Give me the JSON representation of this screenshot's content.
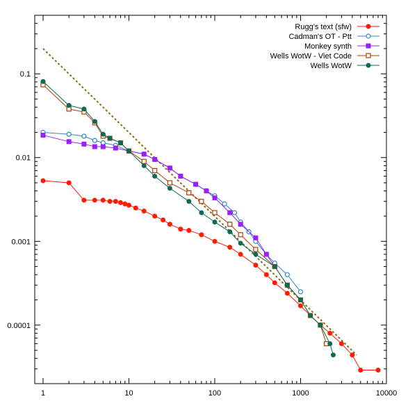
{
  "chart_data": {
    "type": "scatter",
    "title": "",
    "xlabel": "",
    "ylabel": "",
    "xscale": "log",
    "yscale": "log",
    "xlim": [
      0.8,
      10000
    ],
    "ylim": [
      2e-05,
      0.5
    ],
    "grid": false,
    "legend_position": "top-right",
    "x_ticks": [
      {
        "value": 1,
        "label": "1"
      },
      {
        "value": 10,
        "label": "10"
      },
      {
        "value": 100,
        "label": "100"
      },
      {
        "value": 1000,
        "label": "1000"
      },
      {
        "value": 10000,
        "label": "10000"
      }
    ],
    "y_ticks": [
      {
        "value": 0.1,
        "label": "0.1"
      },
      {
        "value": 0.01,
        "label": "0.01"
      },
      {
        "value": 0.001,
        "label": "0.001"
      },
      {
        "value": 0.0001,
        "label": "0.0001"
      }
    ],
    "reference_line": {
      "style": "dashed",
      "color": "#8b6a10",
      "points": [
        [
          1,
          0.2
        ],
        [
          4500,
          4.4e-05
        ]
      ]
    },
    "series": [
      {
        "name": "Rugg's text (sfw)",
        "color": "#ff1a00",
        "marker": "circle-filled",
        "points": [
          [
            1,
            0.0053
          ],
          [
            2,
            0.005
          ],
          [
            3,
            0.0031
          ],
          [
            4,
            0.0031
          ],
          [
            5,
            0.0031
          ],
          [
            6,
            0.003
          ],
          [
            7,
            0.003
          ],
          [
            8,
            0.0029
          ],
          [
            9,
            0.0028
          ],
          [
            10,
            0.0027
          ],
          [
            12,
            0.0025
          ],
          [
            15,
            0.0023
          ],
          [
            20,
            0.002
          ],
          [
            25,
            0.0018
          ],
          [
            30,
            0.0016
          ],
          [
            40,
            0.0014
          ],
          [
            50,
            0.00135
          ],
          [
            70,
            0.0012
          ],
          [
            100,
            0.001
          ],
          [
            150,
            0.00085
          ],
          [
            200,
            0.0007
          ],
          [
            300,
            0.00052
          ],
          [
            400,
            0.0004
          ],
          [
            500,
            0.00032
          ],
          [
            700,
            0.00024
          ],
          [
            1000,
            0.00017
          ],
          [
            1300,
            0.00013
          ],
          [
            1700,
            0.0001
          ],
          [
            2200,
            8e-05
          ],
          [
            3000,
            6e-05
          ],
          [
            4000,
            4.4e-05
          ],
          [
            5000,
            2.9e-05
          ],
          [
            8000,
            2.9e-05
          ]
        ]
      },
      {
        "name": "Cadman's OT - Ptt",
        "color": "#2a8ac6",
        "marker": "circle-open",
        "points": [
          [
            1,
            0.02
          ],
          [
            2,
            0.019
          ],
          [
            3,
            0.018
          ],
          [
            4,
            0.016
          ],
          [
            5,
            0.015
          ],
          [
            7,
            0.014
          ],
          [
            10,
            0.012
          ],
          [
            15,
            0.011
          ],
          [
            20,
            0.0095
          ],
          [
            30,
            0.0075
          ],
          [
            40,
            0.006
          ],
          [
            60,
            0.0048
          ],
          [
            80,
            0.004
          ],
          [
            100,
            0.0035
          ],
          [
            130,
            0.0028
          ],
          [
            170,
            0.0022
          ],
          [
            200,
            0.0017
          ],
          [
            250,
            0.0013
          ],
          [
            300,
            0.001
          ],
          [
            400,
            0.0007
          ],
          [
            500,
            0.00055
          ],
          [
            700,
            0.0004
          ],
          [
            1000,
            0.00025
          ]
        ]
      },
      {
        "name": "Monkey synth",
        "color": "#9a1fff",
        "marker": "square-filled",
        "points": [
          [
            1,
            0.0185
          ],
          [
            2,
            0.0155
          ],
          [
            3,
            0.0145
          ],
          [
            4,
            0.0135
          ],
          [
            5,
            0.0135
          ],
          [
            7,
            0.013
          ],
          [
            10,
            0.012
          ],
          [
            15,
            0.011
          ],
          [
            20,
            0.0095
          ],
          [
            30,
            0.0075
          ],
          [
            40,
            0.006
          ],
          [
            60,
            0.0048
          ],
          [
            80,
            0.004
          ],
          [
            100,
            0.0033
          ],
          [
            150,
            0.0022
          ],
          [
            200,
            0.0016
          ],
          [
            300,
            0.0011
          ],
          [
            400,
            0.0007
          ],
          [
            500,
            0.0005
          ]
        ]
      },
      {
        "name": "Wells WotW - Viet Code",
        "color": "#b33c00",
        "marker": "square-open",
        "points": [
          [
            1,
            0.074
          ],
          [
            2,
            0.038
          ],
          [
            3,
            0.035
          ],
          [
            4,
            0.026
          ],
          [
            5,
            0.018
          ],
          [
            6,
            0.017
          ],
          [
            8,
            0.015
          ],
          [
            10,
            0.012
          ],
          [
            15,
            0.009
          ],
          [
            20,
            0.007
          ],
          [
            30,
            0.005
          ],
          [
            50,
            0.0038
          ],
          [
            70,
            0.003
          ],
          [
            100,
            0.0022
          ],
          [
            150,
            0.0016
          ],
          [
            200,
            0.0012
          ],
          [
            300,
            0.0008
          ],
          [
            500,
            0.0005
          ],
          [
            700,
            0.0003
          ],
          [
            1000,
            0.0002
          ],
          [
            1300,
            0.00013
          ],
          [
            1700,
            0.0001
          ],
          [
            2000,
            6e-05
          ]
        ]
      },
      {
        "name": "Wells WotW",
        "color": "#0d6a55",
        "marker": "circle-filled",
        "points": [
          [
            1,
            0.081
          ],
          [
            2,
            0.042
          ],
          [
            3,
            0.038
          ],
          [
            4,
            0.027
          ],
          [
            5,
            0.019
          ],
          [
            6,
            0.017
          ],
          [
            8,
            0.015
          ],
          [
            10,
            0.012
          ],
          [
            15,
            0.008
          ],
          [
            20,
            0.006
          ],
          [
            30,
            0.0043
          ],
          [
            50,
            0.003
          ],
          [
            70,
            0.0022
          ],
          [
            100,
            0.0017
          ],
          [
            150,
            0.0013
          ],
          [
            200,
            0.00095
          ],
          [
            300,
            0.0007
          ],
          [
            500,
            0.0005
          ],
          [
            700,
            0.0003
          ],
          [
            1000,
            0.0002
          ],
          [
            1300,
            0.00013
          ],
          [
            1700,
            0.0001
          ],
          [
            2200,
            6e-05
          ],
          [
            2400,
            4.4e-05
          ]
        ]
      }
    ]
  }
}
